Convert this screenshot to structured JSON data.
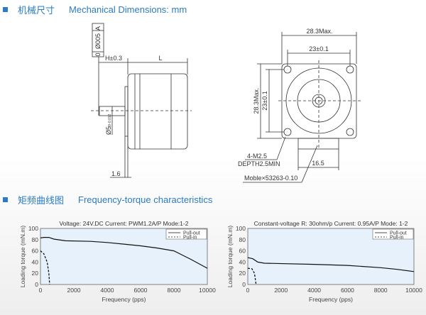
{
  "section1": {
    "title_cn": "机械尺寸",
    "title_en": "Mechanical Dimensions: mm"
  },
  "section2": {
    "title_cn": "矩频曲线图",
    "title_en": "Frequency-torque characteristics"
  },
  "drawing": {
    "tolerance_frame": [
      "0",
      "Ø005",
      "A"
    ],
    "h_dim": "H±0.3",
    "l_dim": "L",
    "shaft_dia": "Ø5",
    "shaft_tol": "0/-0.012",
    "flange": "1.6",
    "width_max": "28.3Max.",
    "hole_pitch": "23±0.1",
    "height_max": "28.3Max.",
    "hole_pitch_v": "23±0.1",
    "thread": "4-M2.5",
    "depth": "DEPTH2.5MIN",
    "connector_width": "16.5",
    "connector": "Moble×53263-0.10"
  },
  "chart_data": [
    {
      "type": "line",
      "title": "Voltage: 24V.DC Current: PWM1.2A/P Mode:1-2",
      "xlabel": "Frequency (pps)",
      "ylabel": "Loading torque (mN.m)",
      "xlim": [
        0,
        10000
      ],
      "ylim": [
        0,
        100
      ],
      "xticks": [
        "0",
        "2000",
        "4000",
        "6000",
        "8000",
        "10000"
      ],
      "yticks": [
        "0",
        "20",
        "40",
        "60",
        "80",
        "100"
      ],
      "legend": "top-right",
      "series": [
        {
          "name": "Pull-out",
          "style": "solid",
          "x": [
            0,
            200,
            500,
            800,
            1500,
            3000,
            4000,
            5000,
            6000,
            7000,
            8000,
            9000,
            10000
          ],
          "y": [
            83,
            84,
            84,
            81,
            78,
            77,
            75,
            72,
            69,
            65,
            60,
            45,
            29
          ]
        },
        {
          "name": "Pull-in",
          "style": "dashed",
          "x": [
            0,
            200,
            400,
            500,
            550
          ],
          "y": [
            60,
            55,
            40,
            20,
            0
          ]
        }
      ]
    },
    {
      "type": "line",
      "title": "Constant-voltage R: 30ohm/p Current: 0.95A/P Mode: 1-2",
      "xlabel": "Frequency (pps)",
      "ylabel": "Loading torque (mN.m)",
      "xlim": [
        0,
        10000
      ],
      "ylim": [
        0,
        100
      ],
      "xticks": [
        "0",
        "2000",
        "4000",
        "6000",
        "8000",
        "10000"
      ],
      "yticks": [
        "0",
        "20",
        "40",
        "60",
        "80",
        "100"
      ],
      "legend": "top-right",
      "series": [
        {
          "name": "Pull-out",
          "style": "solid",
          "x": [
            0,
            300,
            600,
            1000,
            4000,
            6000,
            8000,
            9000,
            10000
          ],
          "y": [
            48,
            46,
            40,
            38,
            36,
            34,
            30,
            27,
            23
          ]
        },
        {
          "name": "Pull-in",
          "style": "dashed",
          "x": [
            0,
            250,
            400,
            500
          ],
          "y": [
            29,
            28,
            20,
            0
          ]
        }
      ]
    }
  ]
}
